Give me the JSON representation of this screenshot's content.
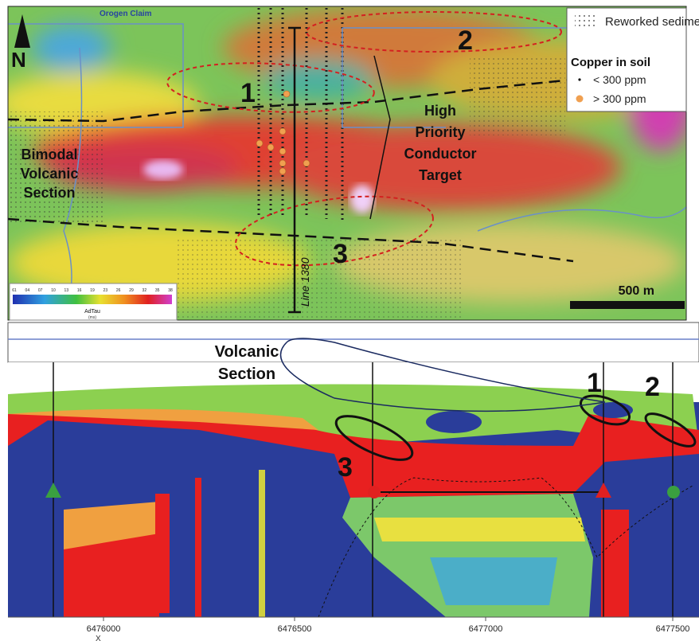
{
  "map": {
    "claim_label": "Orogen Claim",
    "legend": {
      "sediments": "Reworked sediments",
      "copper_title": "Copper in soil",
      "low": "< 300 ppm",
      "high": "> 300 ppm"
    },
    "targets": [
      "1",
      "2",
      "3"
    ],
    "conductor_label": [
      "High",
      "Priority",
      "Conductor",
      "Target"
    ],
    "section_label": [
      "Bimodal",
      "Volcanic",
      "Section"
    ],
    "line_label": "Line 1380",
    "scale": "500 m",
    "colorbar": {
      "title": "AdTau",
      "unit": "(ms)",
      "ticks": [
        "61",
        "04",
        "07",
        "10",
        "13",
        "16",
        "19",
        "23",
        "26",
        "29",
        "32",
        "35",
        "38"
      ]
    }
  },
  "section": {
    "label": [
      "Volcanic",
      "Section"
    ],
    "targets": [
      "1",
      "2",
      "3"
    ],
    "x_labels": [
      "6476000",
      "6476500",
      "6477000",
      "6477500"
    ],
    "x_title": "X"
  }
}
